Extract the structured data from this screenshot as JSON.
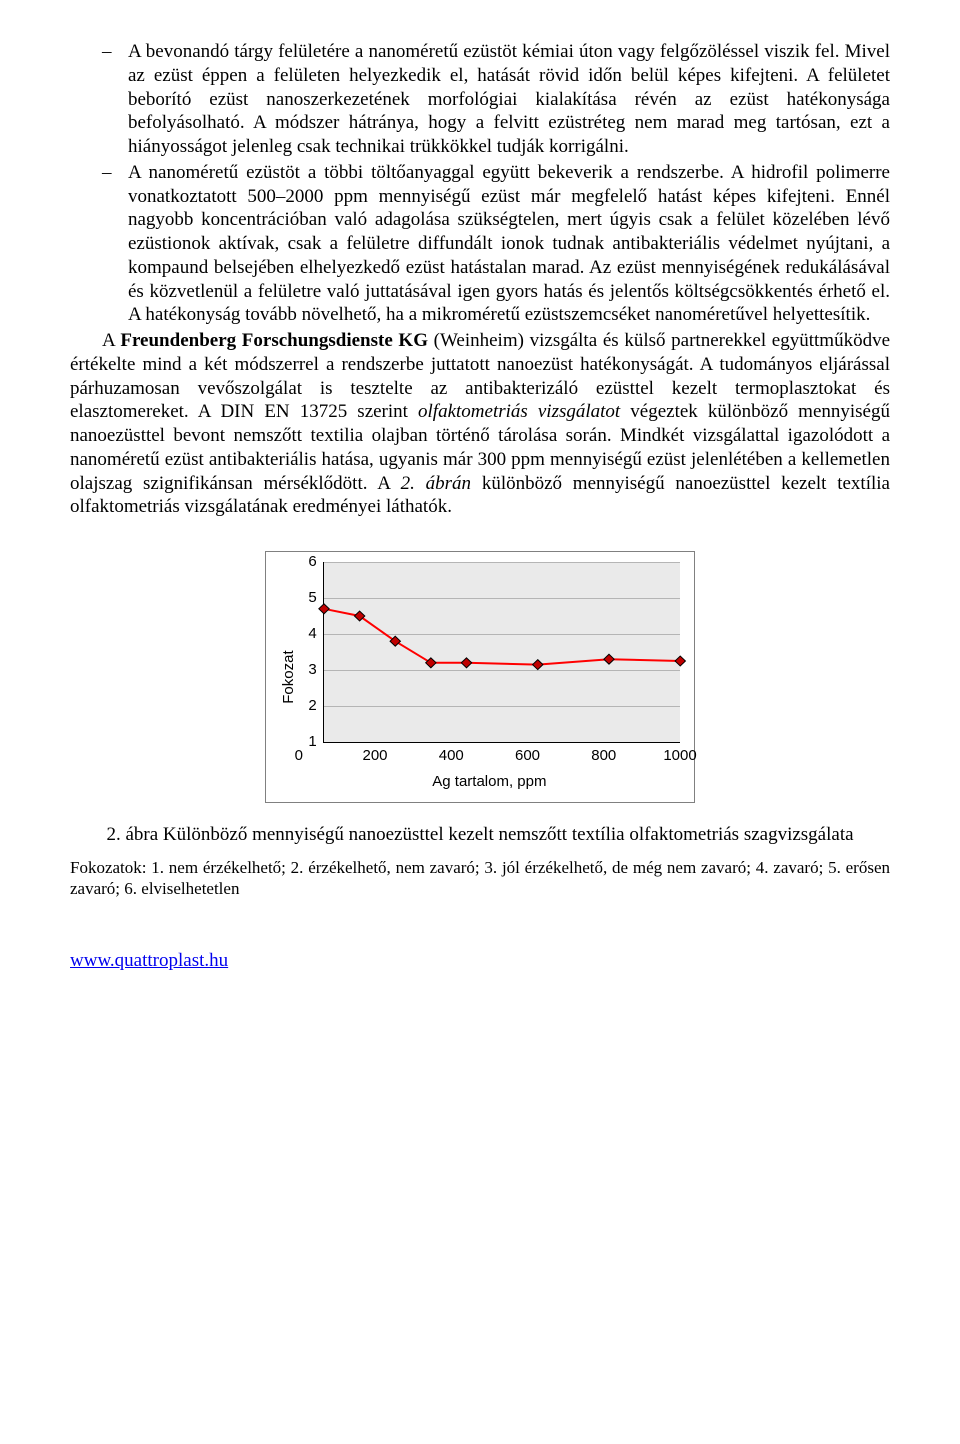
{
  "bullets": [
    {
      "text": "A bevonandó tárgy felületére a nanoméretű ezüstöt kémiai úton vagy felgőzöléssel viszik fel. Mivel az ezüst éppen a felületen helyezkedik el, hatását rövid időn belül képes kifejteni. A felületet beborító ezüst nanoszerkezetének morfológiai kialakítása révén az ezüst hatékonysága befolyásolható. A módszer hátránya, hogy a felvitt ezüstréteg nem marad meg tartósan, ezt a hiányosságot jelenleg csak technikai trükkökkel tudják korrigálni."
    },
    {
      "text": "A nanoméretű ezüstöt a többi töltőanyaggal együtt bekeverik a rendszerbe. A hidrofil polimerre vonatkoztatott 500–2000 ppm mennyiségű ezüst már megfelelő hatást képes kifejteni. Ennél nagyobb koncentrációban való adagolása szükségtelen, mert úgyis csak a felület közelében lévő ezüstionok aktívak, csak a felületre diffundált ionok tudnak antibakteriális védelmet nyújtani, a kompaund belsejében elhelyezkedő ezüst hatástalan marad. Az ezüst mennyiségének redukálásával és közvetlenül a felületre való juttatásával igen gyors hatás és jelentős költségcsökkentés érhető el. A hatékonyság tovább növelhető, ha a mikroméretű ezüstszemcséket nanoméretűvel helyettesítik."
    }
  ],
  "para2": {
    "bold_lead": "Freundenberg Forschungsdienste KG",
    "prefix": "A ",
    "after_bold": " (Weinheim) vizsgálta és külső partnerekkel együttműködve értékelte mind a két módszerrel a rendszerbe juttatott nanoezüst hatékonyságát. A tudományos eljárással párhuzamosan vevőszolgálat is tesztelte az antibakterizáló ezüsttel kezelt termoplasztokat és elasztomereket. A DIN EN 13725 szerint ",
    "italic1": "olfaktometriás vizsgálatot",
    "mid": " végeztek különböző mennyiségű nanoezüsttel bevont nemszőtt textilia olajban történő tárolása során. Mindkét vizsgálattal igazolódott a nanoméretű ezüst antibakteriális hatása, ugyanis már 300 ppm mennyiségű ezüst jelenlétében a kellemetlen olajszag szignifikánsan mérséklődött. A ",
    "italic2": "2. ábrán",
    "tail": " különböző mennyiségű nanoezüsttel kezelt textília olfaktometriás vizsgálatának eredményei láthatók."
  },
  "chart": {
    "type": "line",
    "ylabel": "Fokozat",
    "xlabel": "Ag tartalom, ppm",
    "ylim": [
      1,
      6
    ],
    "yticks": [
      6,
      5,
      4,
      3,
      2,
      1
    ],
    "xlim": [
      0,
      1000
    ],
    "xticks": [
      0,
      200,
      400,
      600,
      800,
      1000
    ],
    "series": {
      "x": [
        0,
        100,
        200,
        300,
        400,
        600,
        800,
        1000
      ],
      "y": [
        4.7,
        4.5,
        3.8,
        3.2,
        3.2,
        3.15,
        3.3,
        3.25
      ],
      "line_color": "#ff0000",
      "line_width": 2,
      "marker": "diamond",
      "marker_color": "#c00000",
      "marker_border": "#000000",
      "marker_size": 9
    },
    "background_color": "#eaeaea",
    "grid_color": "#b5b5b5",
    "frame_border": "#808080",
    "axis_color": "#000000",
    "font_family": "Arial",
    "tick_fontsize": 15,
    "label_fontsize": 15
  },
  "fig_caption": "2. ábra Különböző mennyiségű nanoezüsttel kezelt nemszőtt textília olfaktometriás szagvizsgálata",
  "legend_line": "Fokozatok: 1. nem érzékelhető; 2. érzékelhető, nem zavaró; 3. jól érzékelhető, de még nem zavaró; 4. zavaró; 5. erősen zavaró; 6. elviselhetetlen",
  "footer_link_text": "www.quattroplast.hu"
}
